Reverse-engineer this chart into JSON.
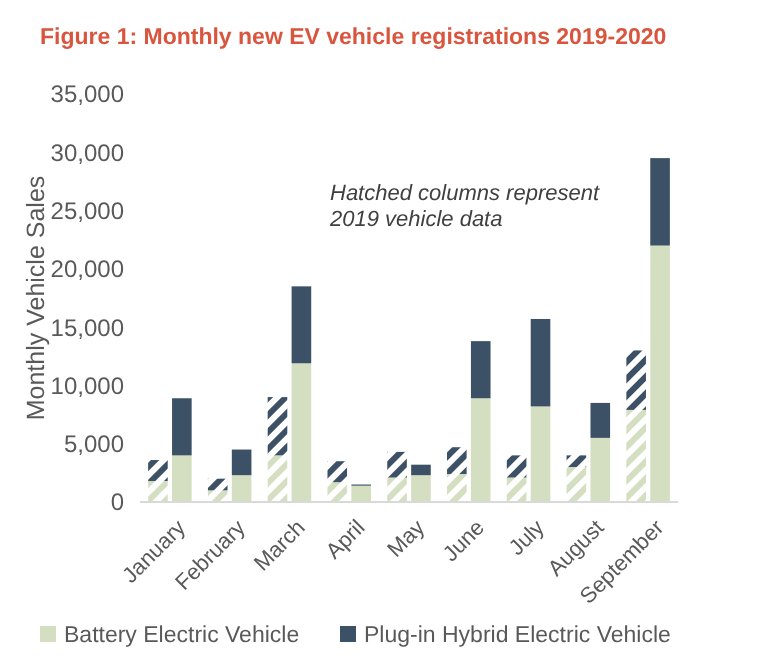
{
  "chart_data": {
    "type": "bar",
    "title": "Figure 1: Monthly new EV vehicle registrations 2019-2020",
    "ylabel": "Monthly Vehicle Sales",
    "stacked": true,
    "legend": "bottom",
    "annotations": [
      "Hatched columns represent 2019 vehicle data"
    ],
    "categories": [
      "January",
      null,
      "February",
      null,
      "March",
      null,
      "April",
      null,
      "May",
      null,
      "June",
      null,
      "July",
      null,
      "August",
      null,
      "September",
      null
    ],
    "ylim": [
      0,
      35000
    ],
    "yticks": [
      {
        "value": 0,
        "label": "0"
      },
      {
        "value": 5000,
        "label": "5,000"
      },
      {
        "value": 10000,
        "label": "10,000"
      },
      {
        "value": 15000,
        "label": "15,000"
      },
      {
        "value": 20000,
        "label": "20,000"
      },
      {
        "value": 25000,
        "label": "25,000"
      },
      {
        "value": 30000,
        "label": "30,000"
      },
      {
        "value": 35000,
        "label": "35,000"
      }
    ],
    "series": [
      {
        "color": "#d3dfc0",
        "values": [
          1800,
          null,
          1000,
          null,
          4000,
          null,
          1700,
          null,
          2100,
          null,
          2400,
          null,
          2100,
          null,
          3000,
          null,
          7900,
          null
        ]
      },
      {
        "color": "#3d5166",
        "values": [
          1800,
          null,
          1000,
          null,
          5000,
          null,
          1800,
          null,
          2200,
          null,
          2300,
          null,
          1900,
          null,
          1000,
          null,
          5100,
          null
        ]
      },
      {
        "name": "Battery Electric Vehicle",
        "color": "#d3dfc0",
        "values": [
          null,
          4000,
          null,
          2300,
          null,
          11900,
          null,
          1400,
          null,
          2300,
          null,
          8900,
          null,
          8200,
          null,
          5500,
          null,
          22000
        ]
      },
      {
        "name": "Plug-in Hybrid Electric Vehicle",
        "color": "#3d5166",
        "values": [
          null,
          4900,
          null,
          2200,
          null,
          6600,
          null,
          100,
          null,
          900,
          null,
          4900,
          null,
          7500,
          null,
          3000,
          null,
          7500
        ]
      }
    ]
  }
}
